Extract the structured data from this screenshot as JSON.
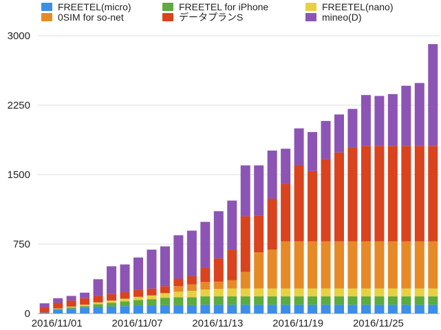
{
  "chart_data": {
    "type": "bar",
    "stacked": true,
    "title": "",
    "xlabel": "",
    "ylabel": "",
    "ylim": [
      0,
      3000
    ],
    "yticks": [
      0,
      750,
      1500,
      2250,
      3000
    ],
    "grid": true,
    "legend_position": "top",
    "x_tick_labels": [
      {
        "index": 0,
        "label": "2016/11/01"
      },
      {
        "index": 6,
        "label": "2016/11/07"
      },
      {
        "index": 12,
        "label": "2016/11/13"
      },
      {
        "index": 18,
        "label": "2016/11/19"
      },
      {
        "index": 24,
        "label": "2016/11/25"
      }
    ],
    "categories": [
      "2016/11/01",
      "2016/11/02",
      "2016/11/03",
      "2016/11/04",
      "2016/11/05",
      "2016/11/06",
      "2016/11/07",
      "2016/11/08",
      "2016/11/09",
      "2016/11/10",
      "2016/11/11",
      "2016/11/12",
      "2016/11/13",
      "2016/11/14",
      "2016/11/15",
      "2016/11/16",
      "2016/11/17",
      "2016/11/18",
      "2016/11/19",
      "2016/11/20",
      "2016/11/21",
      "2016/11/22",
      "2016/11/23",
      "2016/11/24",
      "2016/11/25",
      "2016/11/26",
      "2016/11/27",
      "2016/11/28",
      "2016/11/29",
      "2016/11/30"
    ],
    "series": [
      {
        "name": "FREETEL(micro)",
        "color": "#3d8ee8",
        "values": [
          10,
          40,
          50,
          60,
          70,
          75,
          80,
          85,
          85,
          90,
          90,
          90,
          95,
          95,
          95,
          95,
          95,
          95,
          95,
          95,
          95,
          95,
          95,
          95,
          95,
          95,
          95,
          95,
          95,
          95
        ]
      },
      {
        "name": "FREETEL for iPhone",
        "color": "#5cab3f",
        "values": [
          0,
          10,
          15,
          20,
          30,
          40,
          50,
          60,
          70,
          80,
          85,
          85,
          90,
          90,
          90,
          90,
          90,
          90,
          90,
          90,
          90,
          90,
          90,
          90,
          90,
          90,
          90,
          90,
          90,
          90
        ]
      },
      {
        "name": "FREETEL(nano)",
        "color": "#e7d142",
        "values": [
          0,
          5,
          10,
          15,
          20,
          25,
          30,
          35,
          40,
          50,
          60,
          70,
          75,
          80,
          85,
          85,
          85,
          85,
          85,
          85,
          85,
          85,
          85,
          85,
          85,
          85,
          85,
          85,
          85,
          85
        ]
      },
      {
        "name": "0SIM for so-net",
        "color": "#e68a27",
        "values": [
          0,
          0,
          0,
          0,
          0,
          0,
          0,
          0,
          0,
          0,
          60,
          70,
          80,
          80,
          90,
          180,
          390,
          420,
          510,
          510,
          510,
          510,
          510,
          510,
          510,
          510,
          510,
          510,
          510,
          510
        ]
      },
      {
        "name": "データプランS",
        "color": "#d9431e",
        "values": [
          60,
          60,
          65,
          70,
          70,
          70,
          70,
          75,
          75,
          75,
          80,
          90,
          150,
          250,
          330,
          600,
          400,
          550,
          620,
          820,
          760,
          890,
          960,
          1010,
          1030,
          1030,
          1030,
          1030,
          1030,
          1030
        ]
      },
      {
        "name": "mineo(D)",
        "color": "#8c55b5",
        "values": [
          40,
          50,
          50,
          60,
          180,
          300,
          300,
          350,
          420,
          430,
          470,
          490,
          500,
          510,
          530,
          550,
          540,
          520,
          380,
          400,
          420,
          410,
          410,
          420,
          550,
          540,
          560,
          650,
          680,
          1100
        ]
      }
    ]
  }
}
